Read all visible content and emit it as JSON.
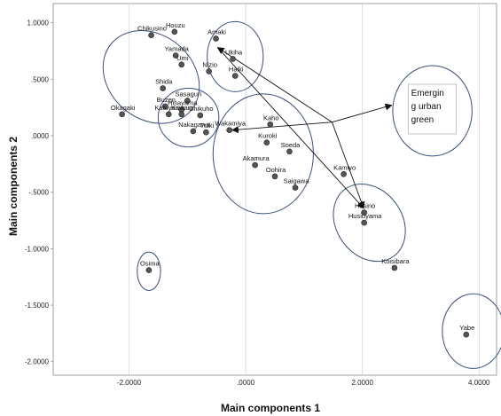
{
  "chart_data": {
    "type": "scatter",
    "xlabel": "Main components 1",
    "ylabel": "Main components 2",
    "xlim": [
      -3.3,
      4.3
    ],
    "ylim": [
      -2.12,
      1.17
    ],
    "xticks": [
      -2.0,
      0.0,
      2.0,
      4.0
    ],
    "xtick_labels": [
      "-2.0000",
      ".0000",
      "2.0000",
      "4.0000"
    ],
    "yticks": [
      1.0,
      0.5,
      0.0,
      -0.5,
      -1.0,
      -1.5,
      -2.0
    ],
    "ytick_labels": [
      "1.0000",
      ".5000",
      ".0000",
      "-.5000",
      "-1.0000",
      "-1.5000",
      "-2.0000"
    ],
    "grid": "vertical",
    "points": [
      {
        "label": "Chikusino",
        "x": -1.62,
        "y": 0.89
      },
      {
        "label": "Houzu",
        "x": -1.22,
        "y": 0.92
      },
      {
        "label": "Yamada",
        "x": -1.2,
        "y": 0.71
      },
      {
        "label": "Umi",
        "x": -1.1,
        "y": 0.63
      },
      {
        "label": "Shida",
        "x": -1.42,
        "y": 0.42
      },
      {
        "label": "Okagaki",
        "x": -2.12,
        "y": 0.19
      },
      {
        "label": "Buzen",
        "x": -1.38,
        "y": 0.26
      },
      {
        "label": "Sasaguri",
        "x": -1.0,
        "y": 0.31
      },
      {
        "label": "Katuyama",
        "x": -1.32,
        "y": 0.19
      },
      {
        "label": "Hisayama",
        "x": -1.1,
        "y": 0.23
      },
      {
        "label": "Kawara",
        "x": -1.1,
        "y": 0.19
      },
      {
        "label": "Chikuho",
        "x": -0.78,
        "y": 0.18
      },
      {
        "label": "Tuiki",
        "x": -0.68,
        "y": 0.03
      },
      {
        "label": "Nakagawa",
        "x": -0.9,
        "y": 0.04
      },
      {
        "label": "Amaki",
        "x": -0.51,
        "y": 0.86
      },
      {
        "label": "Ukiha",
        "x": -0.22,
        "y": 0.68
      },
      {
        "label": "Haiki",
        "x": -0.18,
        "y": 0.53
      },
      {
        "label": "Nizio",
        "x": -0.63,
        "y": 0.57
      },
      {
        "label": "Wakamiya",
        "x": -0.28,
        "y": 0.05
      },
      {
        "label": "Kaho",
        "x": 0.42,
        "y": 0.1
      },
      {
        "label": "Kuroki",
        "x": 0.36,
        "y": -0.06
      },
      {
        "label": "Soeda",
        "x": 0.75,
        "y": -0.14
      },
      {
        "label": "Akamura",
        "x": 0.16,
        "y": -0.26
      },
      {
        "label": "Oohira",
        "x": 0.5,
        "y": -0.36
      },
      {
        "label": "Saigawa",
        "x": 0.85,
        "y": -0.46
      },
      {
        "label": "Kamiyo",
        "x": 1.68,
        "y": -0.34
      },
      {
        "label": "Hosino",
        "x": 2.03,
        "y": -0.68
      },
      {
        "label": "Husiuyama",
        "x": 2.03,
        "y": -0.77
      },
      {
        "label": "Koisibara",
        "x": 2.55,
        "y": -1.17
      },
      {
        "label": "Osima",
        "x": -1.66,
        "y": -1.19
      },
      {
        "label": "Yabe",
        "x": 3.78,
        "y": -1.76
      }
    ],
    "clusters": [
      {
        "cx": -1.62,
        "cy": 0.52,
        "rx": 0.72,
        "ry": 0.46,
        "angle": -50
      },
      {
        "cx": -0.98,
        "cy": 0.16,
        "rx": 0.52,
        "ry": 0.26,
        "angle": 0
      },
      {
        "cx": -0.18,
        "cy": 0.7,
        "rx": 0.48,
        "ry": 0.31,
        "angle": 0
      },
      {
        "cx": 0.3,
        "cy": -0.16,
        "rx": 0.86,
        "ry": 0.53,
        "angle": 0
      },
      {
        "cx": 2.12,
        "cy": -0.77,
        "rx": 0.71,
        "ry": 0.29,
        "angle": 54
      },
      {
        "cx": -1.66,
        "cy": -1.2,
        "rx": 0.2,
        "ry": 0.17,
        "angle": 0
      },
      {
        "cx": 3.9,
        "cy": -1.73,
        "rx": 0.53,
        "ry": 0.33,
        "angle": 0
      },
      {
        "cx": 3.2,
        "cy": 0.22,
        "rx": 0.68,
        "ry": 0.4,
        "angle": 0
      }
    ],
    "arrows": [
      {
        "from": [
          1.48,
          0.12
        ],
        "to": [
          2.5,
          0.27
        ]
      },
      {
        "from": [
          1.48,
          0.12
        ],
        "to": [
          -0.48,
          0.78
        ]
      },
      {
        "from": [
          1.48,
          0.12
        ],
        "to": [
          -0.23,
          0.05
        ]
      },
      {
        "from": [
          1.48,
          0.12
        ],
        "to": [
          2.02,
          -0.64
        ]
      },
      {
        "from": [
          -0.48,
          0.78
        ],
        "to": [
          2.02,
          -0.64
        ]
      }
    ],
    "annotation": {
      "lines": [
        "Emergin",
        "g urban",
        "green"
      ],
      "x": 3.2,
      "y": 0.22
    }
  }
}
